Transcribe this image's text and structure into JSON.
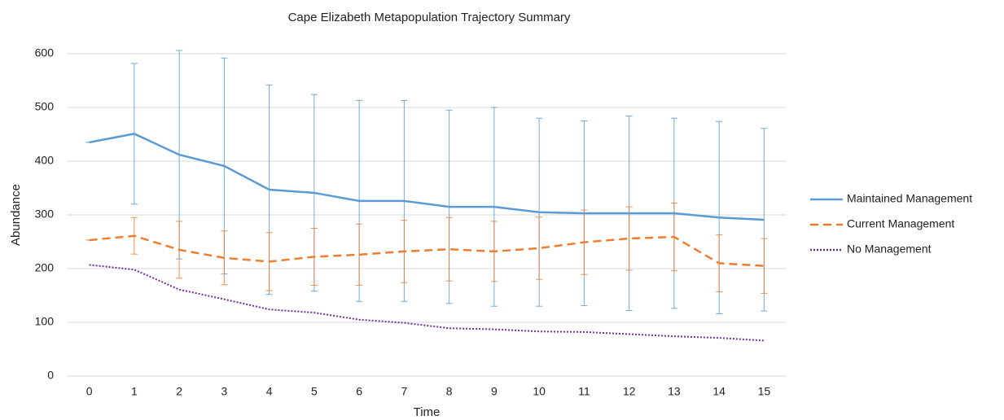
{
  "chart_data": {
    "type": "line",
    "title": "Cape Elizabeth Metapopulation Trajectory Summary",
    "x_label": "Time",
    "y_label": "Abundance",
    "categories": [
      "0",
      "1",
      "2",
      "3",
      "4",
      "5",
      "6",
      "7",
      "8",
      "9",
      "10",
      "11",
      "12",
      "13",
      "14",
      "15"
    ],
    "ylim": [
      0,
      600
    ],
    "yticks": [
      0,
      100,
      200,
      300,
      400,
      500,
      600
    ],
    "grid": true,
    "legend": "right",
    "series": [
      {
        "name": "Maintained Management",
        "color": "#5b9bd5",
        "line_style": "solid",
        "values": [
          435,
          451,
          412,
          391,
          347,
          341,
          326,
          326,
          315,
          315,
          305,
          303,
          303,
          303,
          295,
          291
        ],
        "errors": [
          0,
          131,
          194,
          201,
          195,
          183,
          187,
          187,
          180,
          185,
          175,
          172,
          181,
          177,
          179,
          170
        ]
      },
      {
        "name": "Current Management",
        "color": "#ed7d31",
        "line_style": "dashed",
        "values": [
          253,
          261,
          235,
          220,
          213,
          222,
          226,
          232,
          236,
          232,
          238,
          249,
          256,
          259,
          210,
          205
        ],
        "errors": [
          0,
          34,
          53,
          50,
          54,
          53,
          57,
          58,
          59,
          56,
          58,
          60,
          59,
          63,
          53,
          51
        ]
      },
      {
        "name": "No Management",
        "color": "#7030a0",
        "line_style": "dotted",
        "values": [
          207,
          198,
          161,
          143,
          124,
          118,
          105,
          99,
          89,
          87,
          83,
          82,
          78,
          74,
          71,
          66
        ]
      }
    ]
  }
}
